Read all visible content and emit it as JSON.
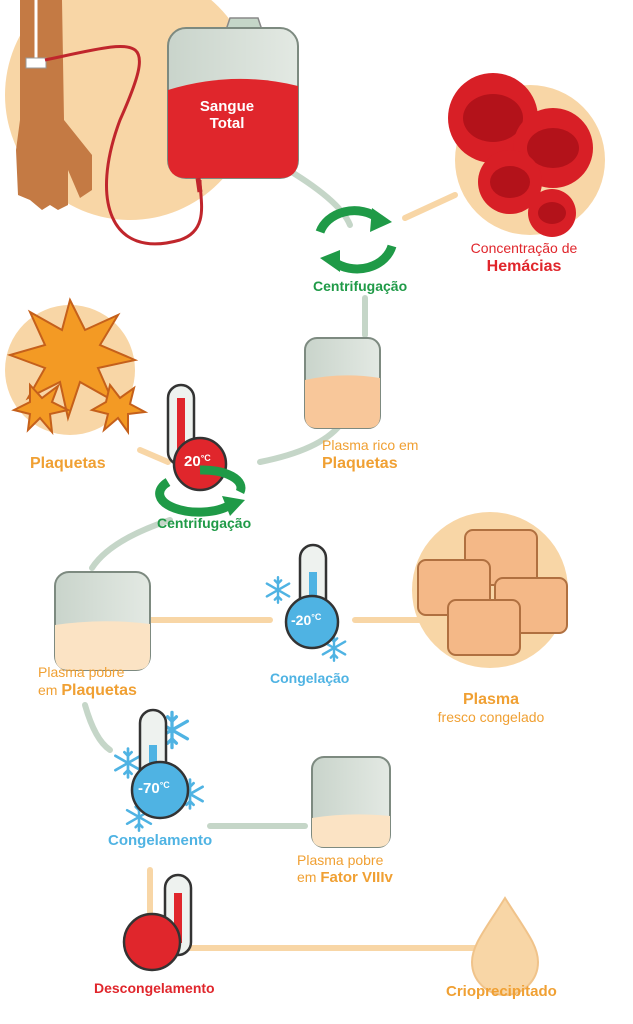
{
  "bag_label": {
    "line1": "Sangue",
    "line2": "Total"
  },
  "red_cells": {
    "line1": "Concentração de",
    "line2": "Hemácias"
  },
  "centrifuge_1": "Centrifugação",
  "prp": {
    "line1": "Plasma rico em",
    "line2": "Plaquetas"
  },
  "platelets": "Plaquetas",
  "thermo_20": {
    "value": "20",
    "unit": "°C"
  },
  "centrifuge_2": "Centrifugação",
  "ppp": {
    "line1": "Plasma pobre",
    "line2_prefix": "em",
    "line2": "Plaquetas"
  },
  "thermo_minus20": {
    "value": "-20",
    "unit": "°C"
  },
  "freezing": "Congelação",
  "ffp": {
    "line1": "Plasma",
    "line2": "fresco congelado"
  },
  "thermo_minus70": {
    "value": "-70",
    "unit": "°C"
  },
  "deep_freezing": "Congelamento",
  "pp_factor": {
    "line1": "Plasma pobre",
    "line2_prefix": "em",
    "line2": "Fator VIIIv"
  },
  "thawing": "Descongelamento",
  "cryo": "Crioprecipitado",
  "colors": {
    "red": "#e0262c",
    "orange": "#f0a033",
    "green": "#1f9a47",
    "blue": "#4fb3e3",
    "beige": "#f8d6a6",
    "connector": "#c5d6c8"
  }
}
